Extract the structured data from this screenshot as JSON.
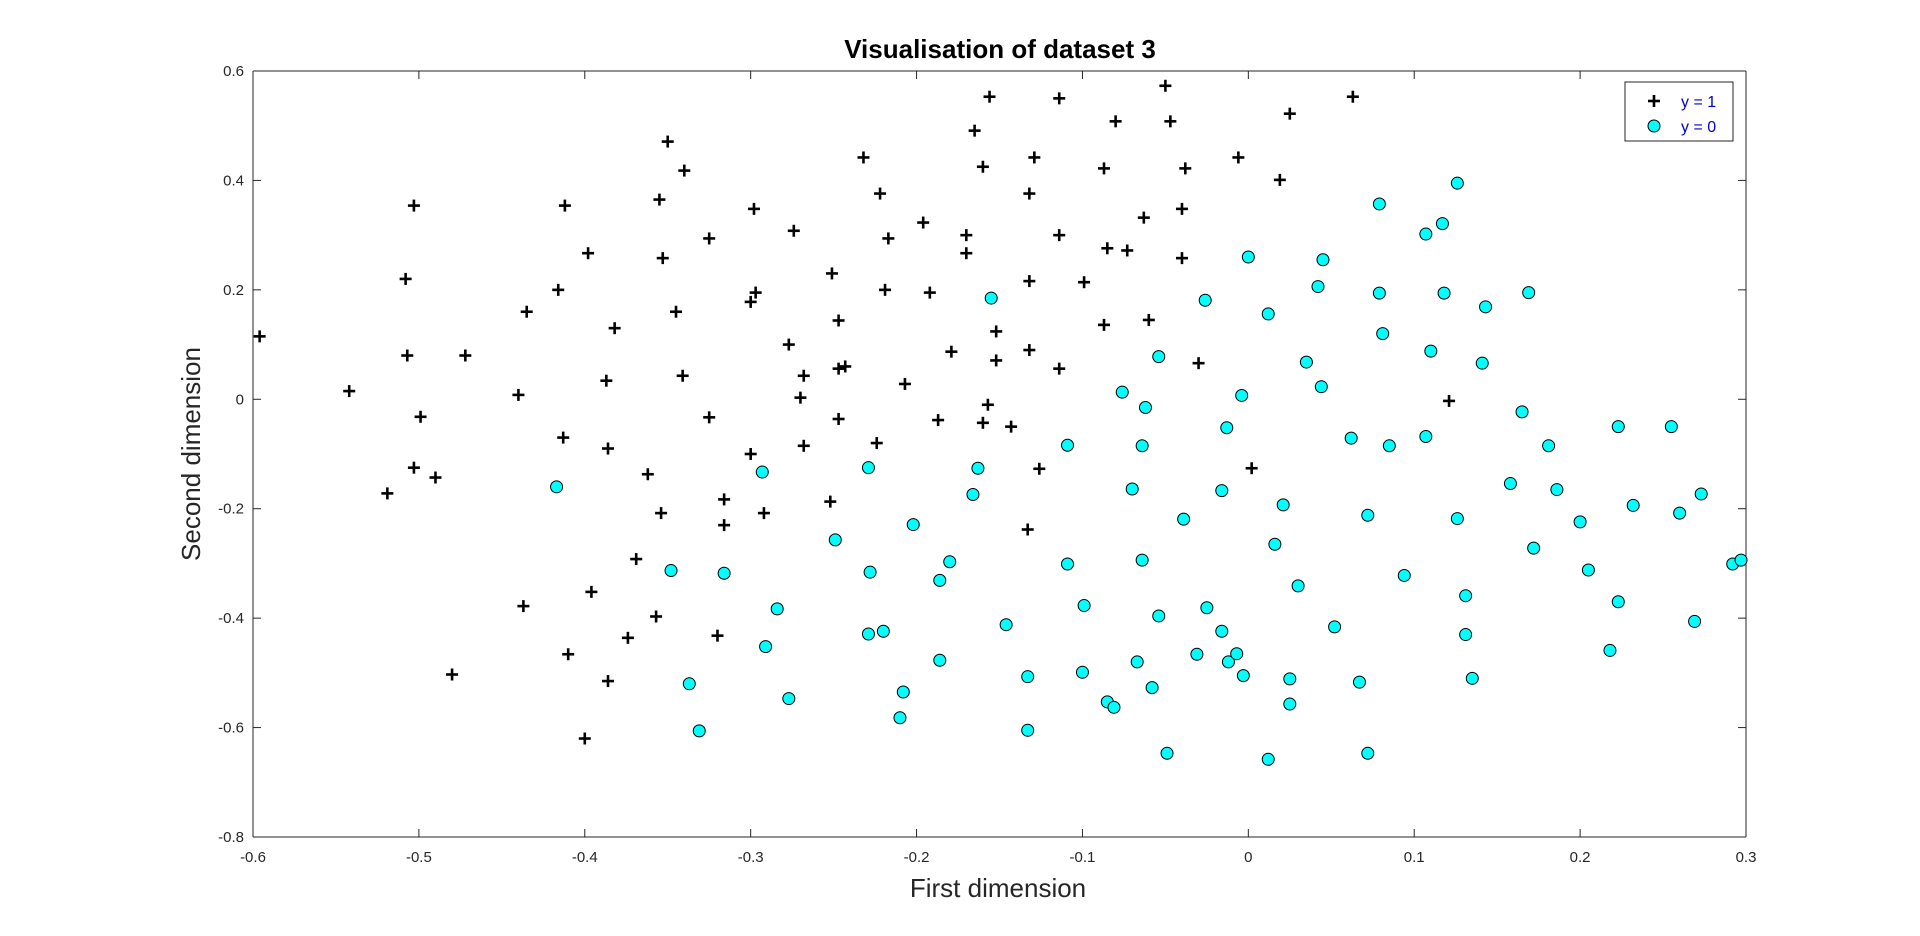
{
  "chart_data": {
    "type": "scatter",
    "title": "Visualisation of dataset 3",
    "xlabel": "First dimension",
    "ylabel": "Second dimension",
    "xlim": [
      -0.6,
      0.3
    ],
    "ylim": [
      -0.8,
      0.6
    ],
    "xticks": [
      -0.6,
      -0.5,
      -0.4,
      -0.3,
      -0.2,
      -0.1,
      0,
      0.1,
      0.2,
      0.3
    ],
    "yticks": [
      -0.8,
      -0.6,
      -0.4,
      -0.2,
      0,
      0.2,
      0.4,
      0.6
    ],
    "xtick_labels": [
      "-0.6",
      "-0.5",
      "-0.4",
      "-0.3",
      "-0.2",
      "-0.1",
      "0",
      "0.1",
      "0.2",
      "0.3"
    ],
    "ytick_labels": [
      "-0.8",
      "-0.6",
      "-0.4",
      "-0.2",
      "0",
      "0.2",
      "0.4",
      "0.6"
    ],
    "grid": false,
    "legend_position": "top-right",
    "series": [
      {
        "name": "y = 1",
        "marker": "plus",
        "color": "#000000",
        "points": [
          [
            -0.596,
            0.115
          ],
          [
            -0.542,
            0.015
          ],
          [
            -0.519,
            -0.172
          ],
          [
            -0.508,
            0.22
          ],
          [
            -0.507,
            0.08
          ],
          [
            -0.503,
            0.354
          ],
          [
            -0.503,
            -0.125
          ],
          [
            -0.499,
            -0.032
          ],
          [
            -0.49,
            -0.143
          ],
          [
            -0.48,
            -0.503
          ],
          [
            -0.472,
            0.08
          ],
          [
            -0.44,
            0.008
          ],
          [
            -0.437,
            -0.378
          ],
          [
            -0.435,
            0.16
          ],
          [
            -0.416,
            0.2
          ],
          [
            -0.413,
            -0.07
          ],
          [
            -0.412,
            0.354
          ],
          [
            -0.41,
            -0.466
          ],
          [
            -0.4,
            -0.62
          ],
          [
            -0.398,
            0.267
          ],
          [
            -0.396,
            -0.352
          ],
          [
            -0.387,
            0.034
          ],
          [
            -0.386,
            -0.09
          ],
          [
            -0.386,
            -0.515
          ],
          [
            -0.382,
            0.13
          ],
          [
            -0.374,
            -0.436
          ],
          [
            -0.369,
            -0.292
          ],
          [
            -0.362,
            -0.137
          ],
          [
            -0.357,
            -0.397
          ],
          [
            -0.355,
            0.365
          ],
          [
            -0.354,
            -0.208
          ],
          [
            -0.353,
            0.258
          ],
          [
            -0.35,
            0.471
          ],
          [
            -0.345,
            0.16
          ],
          [
            -0.341,
            0.043
          ],
          [
            -0.34,
            0.418
          ],
          [
            -0.325,
            0.294
          ],
          [
            -0.325,
            -0.033
          ],
          [
            -0.32,
            -0.432
          ],
          [
            -0.316,
            -0.183
          ],
          [
            -0.316,
            -0.23
          ],
          [
            -0.3,
            0.178
          ],
          [
            -0.3,
            -0.1
          ],
          [
            -0.298,
            0.348
          ],
          [
            -0.297,
            0.195
          ],
          [
            -0.292,
            -0.208
          ],
          [
            -0.274,
            0.308
          ],
          [
            -0.27,
            0.003
          ],
          [
            -0.268,
            0.043
          ],
          [
            -0.268,
            -0.085
          ],
          [
            -0.277,
            0.1
          ],
          [
            -0.252,
            -0.187
          ],
          [
            -0.251,
            0.23
          ],
          [
            -0.247,
            0.144
          ],
          [
            -0.247,
            0.056
          ],
          [
            -0.247,
            -0.036
          ],
          [
            -0.243,
            0.06
          ],
          [
            -0.232,
            0.442
          ],
          [
            -0.224,
            -0.08
          ],
          [
            -0.222,
            0.376
          ],
          [
            -0.219,
            0.2
          ],
          [
            -0.217,
            0.294
          ],
          [
            -0.207,
            0.028
          ],
          [
            -0.196,
            0.323
          ],
          [
            -0.192,
            0.195
          ],
          [
            -0.187,
            -0.038
          ],
          [
            -0.179,
            0.087
          ],
          [
            -0.17,
            0.3
          ],
          [
            -0.17,
            0.267
          ],
          [
            -0.165,
            0.491
          ],
          [
            -0.16,
            0.425
          ],
          [
            -0.16,
            -0.043
          ],
          [
            -0.156,
            0.553
          ],
          [
            -0.157,
            -0.01
          ],
          [
            -0.152,
            0.124
          ],
          [
            -0.152,
            0.071
          ],
          [
            -0.143,
            -0.05
          ],
          [
            -0.132,
            0.376
          ],
          [
            -0.132,
            0.216
          ],
          [
            -0.132,
            0.09
          ],
          [
            -0.133,
            -0.238
          ],
          [
            -0.129,
            0.442
          ],
          [
            -0.126,
            -0.127
          ],
          [
            -0.114,
            0.55
          ],
          [
            -0.114,
            0.3
          ],
          [
            -0.114,
            0.056
          ],
          [
            -0.099,
            0.214
          ],
          [
            -0.087,
            0.422
          ],
          [
            -0.087,
            0.136
          ],
          [
            -0.085,
            0.276
          ],
          [
            -0.08,
            0.508
          ],
          [
            -0.073,
            0.272
          ],
          [
            -0.063,
            0.332
          ],
          [
            -0.06,
            0.145
          ],
          [
            -0.05,
            0.573
          ],
          [
            -0.047,
            0.508
          ],
          [
            -0.04,
            0.348
          ],
          [
            -0.04,
            0.258
          ],
          [
            -0.038,
            0.422
          ],
          [
            -0.03,
            0.066
          ],
          [
            -0.006,
            0.442
          ],
          [
            0.002,
            -0.126
          ],
          [
            0.019,
            0.401
          ],
          [
            0.025,
            0.522
          ],
          [
            0.063,
            0.553
          ],
          [
            0.121,
            -0.003
          ]
        ]
      },
      {
        "name": "y = 0",
        "marker": "circle",
        "color": "#00ffff",
        "points": [
          [
            -0.417,
            -0.16
          ],
          [
            -0.348,
            -0.313
          ],
          [
            -0.337,
            -0.52
          ],
          [
            -0.331,
            -0.606
          ],
          [
            -0.316,
            -0.318
          ],
          [
            -0.293,
            -0.133
          ],
          [
            -0.291,
            -0.452
          ],
          [
            -0.284,
            -0.383
          ],
          [
            -0.277,
            -0.547
          ],
          [
            -0.249,
            -0.257
          ],
          [
            -0.229,
            -0.125
          ],
          [
            -0.229,
            -0.429
          ],
          [
            -0.228,
            -0.316
          ],
          [
            -0.22,
            -0.424
          ],
          [
            -0.21,
            -0.582
          ],
          [
            -0.208,
            -0.535
          ],
          [
            -0.202,
            -0.229
          ],
          [
            -0.186,
            -0.331
          ],
          [
            -0.186,
            -0.477
          ],
          [
            -0.18,
            -0.297
          ],
          [
            -0.166,
            -0.174
          ],
          [
            -0.163,
            -0.126
          ],
          [
            -0.155,
            0.185
          ],
          [
            -0.146,
            -0.412
          ],
          [
            -0.133,
            -0.507
          ],
          [
            -0.133,
            -0.605
          ],
          [
            -0.109,
            -0.301
          ],
          [
            -0.109,
            -0.084
          ],
          [
            -0.099,
            -0.377
          ],
          [
            -0.1,
            -0.499
          ],
          [
            -0.085,
            -0.553
          ],
          [
            -0.081,
            -0.563
          ],
          [
            -0.076,
            0.013
          ],
          [
            -0.07,
            -0.164
          ],
          [
            -0.067,
            -0.48
          ],
          [
            -0.064,
            -0.085
          ],
          [
            -0.064,
            -0.294
          ],
          [
            -0.062,
            -0.015
          ],
          [
            -0.058,
            -0.527
          ],
          [
            -0.054,
            0.078
          ],
          [
            -0.054,
            -0.396
          ],
          [
            -0.049,
            -0.647
          ],
          [
            -0.039,
            -0.219
          ],
          [
            -0.031,
            -0.466
          ],
          [
            -0.026,
            0.181
          ],
          [
            -0.025,
            -0.381
          ],
          [
            -0.016,
            -0.167
          ],
          [
            -0.016,
            -0.424
          ],
          [
            -0.013,
            -0.052
          ],
          [
            -0.012,
            -0.48
          ],
          [
            -0.007,
            -0.465
          ],
          [
            -0.004,
            0.007
          ],
          [
            -0.003,
            -0.505
          ],
          [
            0.0,
            0.26
          ],
          [
            0.012,
            0.156
          ],
          [
            0.012,
            -0.658
          ],
          [
            0.016,
            -0.265
          ],
          [
            0.021,
            -0.193
          ],
          [
            0.025,
            -0.511
          ],
          [
            0.025,
            -0.557
          ],
          [
            0.03,
            -0.341
          ],
          [
            0.035,
            0.068
          ],
          [
            0.042,
            0.206
          ],
          [
            0.044,
            0.023
          ],
          [
            0.045,
            0.255
          ],
          [
            0.052,
            -0.416
          ],
          [
            0.062,
            -0.071
          ],
          [
            0.067,
            -0.517
          ],
          [
            0.072,
            -0.212
          ],
          [
            0.072,
            -0.647
          ],
          [
            0.079,
            0.357
          ],
          [
            0.079,
            0.194
          ],
          [
            0.081,
            0.12
          ],
          [
            0.085,
            -0.085
          ],
          [
            0.094,
            -0.322
          ],
          [
            0.107,
            0.302
          ],
          [
            0.107,
            -0.068
          ],
          [
            0.11,
            0.088
          ],
          [
            0.117,
            0.321
          ],
          [
            0.118,
            0.194
          ],
          [
            0.126,
            0.395
          ],
          [
            0.126,
            -0.218
          ],
          [
            0.131,
            -0.359
          ],
          [
            0.131,
            -0.43
          ],
          [
            0.135,
            -0.51
          ],
          [
            0.141,
            0.066
          ],
          [
            0.143,
            0.169
          ],
          [
            0.158,
            -0.154
          ],
          [
            0.165,
            -0.023
          ],
          [
            0.169,
            0.195
          ],
          [
            0.172,
            -0.272
          ],
          [
            0.181,
            -0.085
          ],
          [
            0.186,
            -0.165
          ],
          [
            0.2,
            -0.224
          ],
          [
            0.205,
            -0.312
          ],
          [
            0.218,
            -0.459
          ],
          [
            0.223,
            -0.05
          ],
          [
            0.223,
            -0.37
          ],
          [
            0.232,
            -0.194
          ],
          [
            0.255,
            -0.05
          ],
          [
            0.26,
            -0.208
          ],
          [
            0.269,
            -0.406
          ],
          [
            0.273,
            -0.173
          ],
          [
            0.292,
            -0.301
          ],
          [
            0.297,
            -0.294
          ]
        ]
      }
    ]
  }
}
